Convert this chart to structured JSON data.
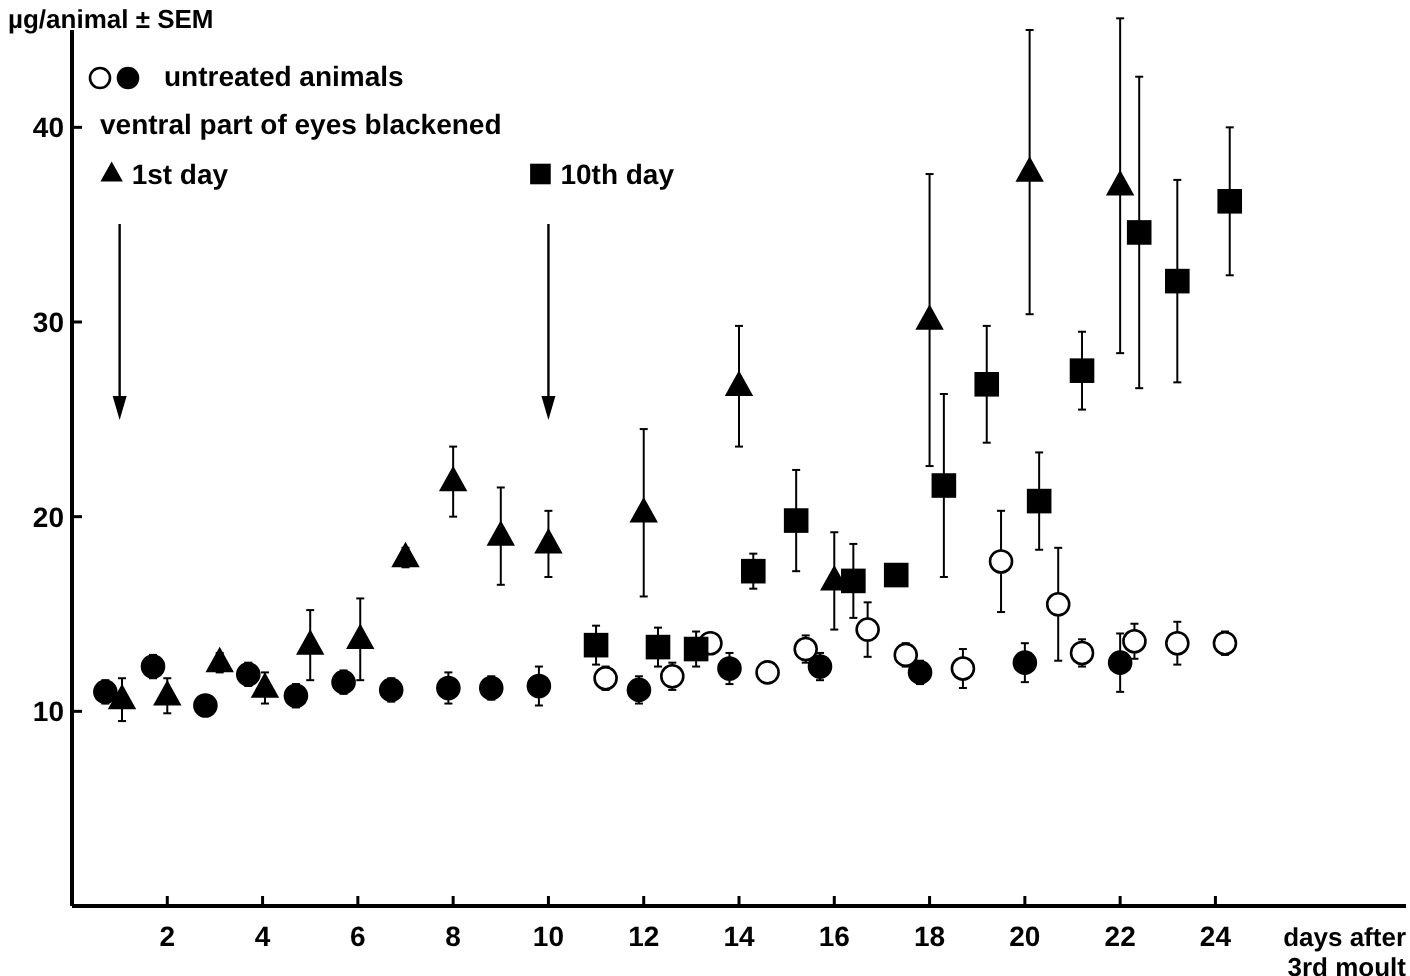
{
  "chart_data": {
    "type": "scatter",
    "ylabel": "µg/animal ± SEM",
    "xlabel": "days after 3rd moult",
    "annotations": [
      "ventral part of eyes blackened"
    ],
    "xlim": [
      0,
      28
    ],
    "xticks": [
      2,
      4,
      6,
      8,
      10,
      12,
      14,
      16,
      18,
      20,
      22,
      24
    ],
    "ylim": [
      0,
      45
    ],
    "yticks": [
      10,
      20,
      30,
      40
    ],
    "grid": false,
    "legend": "top left",
    "ref_lines": [
      {
        "axis": "x",
        "value": 1
      },
      {
        "axis": "x",
        "value": 10
      }
    ],
    "series": [
      {
        "name": "untreated animals",
        "color": "#000000",
        "marker": "circle",
        "x": [
          0.7,
          1.7,
          2.8,
          3.7,
          4.7,
          5.7,
          6.7,
          7.9,
          8.8,
          9.8,
          11.9,
          13.8,
          15.7,
          17.8,
          20.0,
          22.0
        ],
        "values": [
          11.0,
          12.3,
          10.3,
          11.9,
          10.8,
          11.5,
          11.1,
          11.2,
          11.2,
          11.3,
          11.1,
          12.2,
          12.3,
          12.0,
          12.5,
          12.5
        ],
        "errors": [
          0.6,
          0.6,
          0.5,
          0.6,
          0.6,
          0.6,
          0.6,
          0.8,
          0.6,
          1.0,
          0.7,
          0.8,
          0.7,
          0.6,
          1.0,
          1.5
        ]
      },
      {
        "color": "#ffffff",
        "marker": "circle",
        "x": [
          11.2,
          12.6,
          13.4,
          14.6,
          15.4,
          16.7,
          17.5,
          18.7,
          19.5,
          20.7,
          21.2,
          22.3,
          23.2,
          24.2
        ],
        "values": [
          11.7,
          11.8,
          13.5,
          12.0,
          13.2,
          14.2,
          12.9,
          12.2,
          17.7,
          15.5,
          13.0,
          13.6,
          13.5,
          13.5
        ],
        "errors": [
          0.6,
          0.7,
          0.5,
          0.4,
          0.7,
          1.4,
          0.6,
          1.0,
          2.6,
          2.9,
          0.7,
          0.9,
          1.1,
          0.6
        ]
      },
      {
        "name": "1st day",
        "color": "#000000",
        "marker": "triangle",
        "x": [
          1.05,
          2.0,
          3.1,
          4.05,
          5.0,
          6.05,
          7.0,
          8.0,
          9.0,
          10.0,
          12.0,
          14.0,
          16.0,
          18.0,
          20.1,
          22.0
        ],
        "values": [
          10.6,
          10.8,
          12.5,
          11.2,
          13.4,
          13.7,
          17.9,
          21.8,
          19.0,
          18.6,
          20.2,
          26.7,
          16.7,
          30.1,
          37.7,
          37.0
        ],
        "errors": [
          1.1,
          0.9,
          0.5,
          0.8,
          1.8,
          2.1,
          0.5,
          1.8,
          2.5,
          1.7,
          4.3,
          3.1,
          2.5,
          7.5,
          7.3,
          8.6
        ]
      },
      {
        "name": "10th day",
        "color": "#000000",
        "marker": "square",
        "x": [
          11.0,
          12.3,
          13.1,
          14.3,
          15.2,
          16.4,
          17.3,
          18.3,
          19.2,
          20.3,
          21.2,
          22.4,
          23.2,
          24.3
        ],
        "values": [
          13.4,
          13.3,
          13.2,
          17.2,
          19.8,
          16.7,
          17.0,
          21.6,
          26.8,
          20.8,
          27.5,
          34.6,
          32.1,
          36.2
        ],
        "errors": [
          1.0,
          1.0,
          0.9,
          0.9,
          2.6,
          1.9,
          0.5,
          4.7,
          3.0,
          2.5,
          2.0,
          8.0,
          5.2,
          3.8
        ]
      }
    ]
  }
}
